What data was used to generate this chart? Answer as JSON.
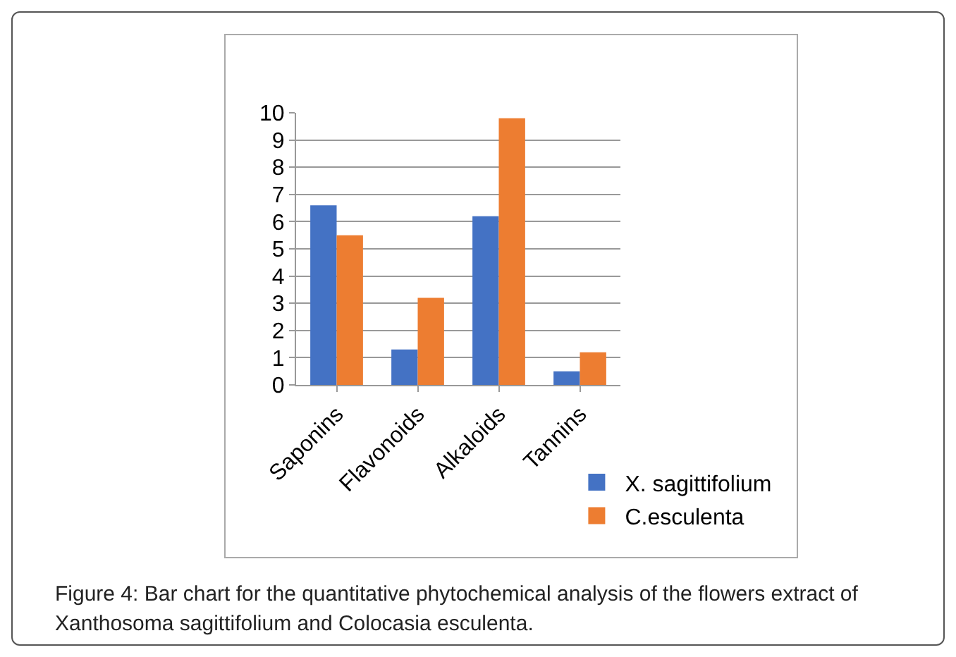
{
  "chart_data": {
    "type": "bar",
    "categories": [
      "Saponins",
      "Flavonoids",
      "Alkaloids",
      "Tannins"
    ],
    "series": [
      {
        "name": "X. sagittifolium",
        "color": "#4472c4",
        "values": [
          6.6,
          1.3,
          6.2,
          0.5
        ]
      },
      {
        "name": "C.esculenta",
        "color": "#ed7d31",
        "values": [
          5.5,
          3.2,
          9.8,
          1.2
        ]
      }
    ],
    "ylim": [
      0,
      10
    ],
    "yticks": [
      0,
      1,
      2,
      3,
      4,
      5,
      6,
      7,
      8,
      9,
      10
    ],
    "grid": "y",
    "legend": "bottom right",
    "annotations": [
      "Figure 4: Bar chart for the quantitative phytochemical analysis of the flowers extract of Xanthosoma sagittifolium and Colocasia esculenta."
    ]
  }
}
